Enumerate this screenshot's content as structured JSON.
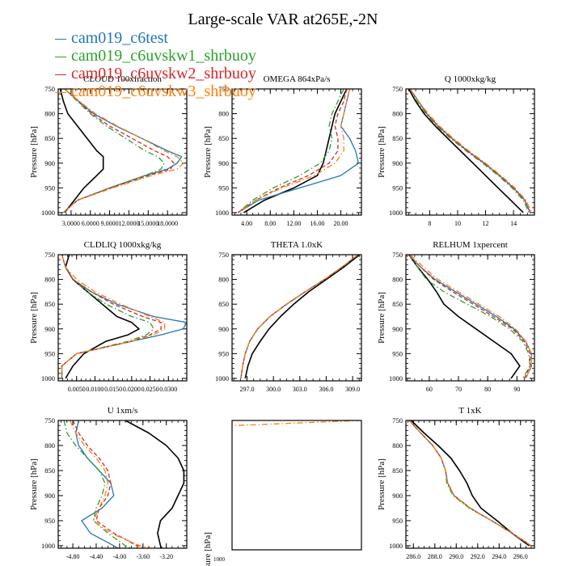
{
  "figure": {
    "title": "Large-scale VAR at265E,-2N",
    "colors": {
      "black": "#000000",
      "blue": "#1f77b4",
      "green": "#2ca02c",
      "red": "#d62728",
      "orange": "#ff7f0e"
    }
  },
  "legend": [
    {
      "name": "cam019_c6test",
      "color": "#1f77b4",
      "dash": "solid"
    },
    {
      "name": "cam019_c6uvskw1_shrbuoy",
      "color": "#2ca02c",
      "dash": "dashdot"
    },
    {
      "name": "cam019_c6uvskw2_shrbuoy",
      "color": "#d62728",
      "dash": "dash"
    },
    {
      "name": "cam019_c6uvskw3_shrbuoy",
      "color": "#ff7f0e",
      "dash": "dashdot"
    }
  ],
  "chart_data": [
    {
      "type": "line",
      "title": "CLOUD 100xfraction",
      "ylabel": "Pressure [hPa]",
      "ylim": [
        1005,
        750
      ],
      "xlim": [
        1.0,
        21.0
      ],
      "xticks": [
        3.0,
        6.0,
        9.0,
        12.0,
        15.0,
        18.0
      ],
      "xticklabels": [
        "3.0000",
        "6.0000",
        "9.0000",
        "12.0000",
        "15.0000",
        "18.0000"
      ],
      "yticks": [
        750,
        800,
        850,
        900,
        950,
        1000
      ],
      "p": [
        750,
        775,
        800,
        825,
        850,
        875,
        887,
        900,
        912,
        925,
        950,
        975,
        1000
      ],
      "series": [
        {
          "color": "black",
          "dash": "solid",
          "x": [
            1.3,
            1.8,
            2.5,
            4.0,
            5.5,
            7.0,
            8.0,
            8.0,
            8.0,
            7.0,
            5.0,
            3.5,
            2.0
          ]
        },
        {
          "color": "blue",
          "dash": "solid",
          "x": [
            2.0,
            4.2,
            6.5,
            10.0,
            14.0,
            18.0,
            20.2,
            19.5,
            18.0,
            14.5,
            9.0,
            4.0,
            1.8
          ]
        },
        {
          "color": "green",
          "dash": "dashdot",
          "x": [
            2.0,
            4.0,
            6.0,
            8.5,
            11.5,
            14.5,
            16.5,
            17.5,
            17.0,
            14.5,
            9.0,
            4.0,
            1.8
          ]
        },
        {
          "color": "red",
          "dash": "dash",
          "x": [
            2.0,
            4.1,
            6.2,
            9.0,
            12.5,
            16.0,
            18.0,
            19.0,
            18.5,
            15.0,
            9.2,
            4.0,
            1.8
          ]
        },
        {
          "color": "orange",
          "dash": "dashdot",
          "x": [
            2.0,
            4.3,
            6.8,
            10.2,
            14.0,
            17.5,
            19.5,
            20.5,
            19.5,
            15.5,
            9.5,
            4.0,
            1.8
          ]
        }
      ]
    },
    {
      "type": "line",
      "title": "OMEGA 864xPa/s",
      "ylabel": "Pressure [hPa]",
      "ylim": [
        1005,
        750
      ],
      "xlim": [
        1.5,
        23.5
      ],
      "xticks": [
        4.0,
        8.0,
        12.0,
        16.0,
        20.0
      ],
      "xticklabels": [
        "4.00",
        "8.00",
        "12.00",
        "16.00",
        "20.00"
      ],
      "yticks": [
        750,
        800,
        850,
        900,
        950,
        1000
      ],
      "p": [
        750,
        775,
        800,
        825,
        850,
        875,
        900,
        925,
        950,
        975,
        1000
      ],
      "series": [
        {
          "color": "black",
          "dash": "solid",
          "x": [
            21.0,
            20.0,
            19.0,
            18.5,
            18.0,
            17.5,
            17.0,
            16.0,
            12.0,
            7.0,
            3.5
          ]
        },
        {
          "color": "blue",
          "dash": "solid",
          "x": [
            21.5,
            21.0,
            20.5,
            20.0,
            21.5,
            22.5,
            23.0,
            20.0,
            13.0,
            6.0,
            2.5
          ]
        },
        {
          "color": "green",
          "dash": "dashdot",
          "x": [
            20.5,
            19.5,
            18.5,
            18.0,
            18.5,
            18.0,
            16.5,
            13.0,
            8.5,
            5.0,
            2.5
          ]
        },
        {
          "color": "red",
          "dash": "dash",
          "x": [
            21.0,
            20.5,
            19.5,
            19.0,
            19.5,
            19.5,
            18.0,
            14.5,
            9.5,
            5.5,
            2.5
          ]
        },
        {
          "color": "orange",
          "dash": "dashdot",
          "x": [
            21.5,
            21.0,
            20.5,
            20.0,
            20.5,
            20.5,
            19.0,
            15.5,
            10.0,
            5.5,
            2.5
          ]
        }
      ]
    },
    {
      "type": "line",
      "title": "Q 1000xkg/kg",
      "ylabel": "Pressure [hPa]",
      "ylim": [
        1005,
        750
      ],
      "xlim": [
        6.3,
        15.5
      ],
      "xticks": [
        8,
        10,
        12,
        14
      ],
      "xticklabels": [
        "8",
        "10",
        "12",
        "14"
      ],
      "yticks": [
        750,
        800,
        850,
        900,
        950,
        1000
      ],
      "p": [
        750,
        775,
        800,
        825,
        850,
        875,
        900,
        925,
        950,
        975,
        1000
      ],
      "series": [
        {
          "color": "black",
          "dash": "solid",
          "x": [
            6.5,
            7.0,
            7.6,
            8.4,
            9.3,
            10.2,
            11.1,
            12.0,
            12.9,
            13.8,
            14.7
          ]
        },
        {
          "color": "blue",
          "dash": "solid",
          "x": [
            6.6,
            7.2,
            7.8,
            8.6,
            9.6,
            10.7,
            11.9,
            13.0,
            14.0,
            14.8,
            15.2
          ]
        },
        {
          "color": "green",
          "dash": "dashdot",
          "x": [
            6.6,
            7.1,
            7.7,
            8.5,
            9.5,
            10.6,
            11.8,
            12.9,
            13.9,
            14.7,
            15.1
          ]
        },
        {
          "color": "red",
          "dash": "dash",
          "x": [
            6.6,
            7.2,
            7.8,
            8.6,
            9.6,
            10.7,
            11.9,
            13.0,
            14.0,
            14.8,
            15.2
          ]
        },
        {
          "color": "orange",
          "dash": "dashdot",
          "x": [
            6.6,
            7.2,
            7.9,
            8.7,
            9.7,
            10.8,
            12.0,
            13.1,
            14.1,
            14.9,
            15.3
          ]
        }
      ]
    },
    {
      "type": "line",
      "title": "CLDLIQ 1000xkg/kg",
      "ylabel": "Pressure [hPa]",
      "ylim": [
        1005,
        750
      ],
      "xlim": [
        0.0,
        0.035
      ],
      "xticks": [
        0.005,
        0.01,
        0.015,
        0.02,
        0.025,
        0.03
      ],
      "xticklabels": [
        "0.0050",
        "0.0100",
        "0.0150",
        "0.0200",
        "0.0250",
        "0.0300"
      ],
      "yticks": [
        750,
        800,
        850,
        900,
        950,
        1000
      ],
      "p": [
        750,
        775,
        800,
        825,
        850,
        875,
        887,
        900,
        912,
        925,
        950,
        975,
        1000
      ],
      "series": [
        {
          "color": "black",
          "dash": "solid",
          "x": [
            0.003,
            0.002,
            0.004,
            0.008,
            0.012,
            0.016,
            0.02,
            0.022,
            0.019,
            0.013,
            0.007,
            0.004,
            0.002
          ]
        },
        {
          "color": "blue",
          "dash": "solid",
          "x": [
            0.001,
            0.002,
            0.004,
            0.009,
            0.016,
            0.026,
            0.035,
            0.034,
            0.028,
            0.02,
            0.005,
            0.001,
            0.001
          ]
        },
        {
          "color": "green",
          "dash": "dashdot",
          "x": [
            0.001,
            0.002,
            0.004,
            0.008,
            0.013,
            0.02,
            0.025,
            0.026,
            0.024,
            0.019,
            0.005,
            0.001,
            0.001
          ]
        },
        {
          "color": "red",
          "dash": "dash",
          "x": [
            0.001,
            0.002,
            0.004,
            0.009,
            0.015,
            0.023,
            0.028,
            0.028,
            0.025,
            0.02,
            0.005,
            0.001,
            0.001
          ]
        },
        {
          "color": "orange",
          "dash": "dashdot",
          "x": [
            0.001,
            0.002,
            0.005,
            0.01,
            0.017,
            0.025,
            0.029,
            0.029,
            0.026,
            0.02,
            0.005,
            0.001,
            0.001
          ]
        }
      ]
    },
    {
      "type": "line",
      "title": "THETA 1.0xK",
      "ylabel": "",
      "ylim": [
        1005,
        750
      ],
      "xlim": [
        295.3,
        310.0
      ],
      "xticks": [
        297.0,
        300.0,
        303.0,
        306.0,
        309.0
      ],
      "xticklabels": [
        "297.0",
        "300.0",
        "303.0",
        "306.0",
        "309.0"
      ],
      "yticks": [
        750,
        800,
        850,
        900,
        950,
        1000
      ],
      "p": [
        750,
        775,
        800,
        825,
        850,
        875,
        900,
        925,
        950,
        975,
        1000
      ],
      "series": [
        {
          "color": "black",
          "dash": "solid",
          "x": [
            309.8,
            308.0,
            306.0,
            304.0,
            302.3,
            300.8,
            299.5,
            298.5,
            297.6,
            297.1,
            296.8
          ]
        },
        {
          "color": "blue",
          "dash": "solid",
          "x": [
            309.6,
            307.8,
            305.8,
            303.6,
            301.5,
            299.6,
            298.2,
            297.3,
            296.8,
            296.5,
            296.3
          ]
        },
        {
          "color": "green",
          "dash": "dashdot",
          "x": [
            309.6,
            307.8,
            305.8,
            303.6,
            301.5,
            299.6,
            298.2,
            297.3,
            296.8,
            296.5,
            296.3
          ]
        },
        {
          "color": "red",
          "dash": "dash",
          "x": [
            309.6,
            307.8,
            305.8,
            303.6,
            301.5,
            299.6,
            298.2,
            297.3,
            296.8,
            296.5,
            296.3
          ]
        },
        {
          "color": "orange",
          "dash": "dashdot",
          "x": [
            309.6,
            307.8,
            305.8,
            303.6,
            301.5,
            299.6,
            298.2,
            297.3,
            296.8,
            296.5,
            296.3
          ]
        }
      ]
    },
    {
      "type": "line",
      "title": "RELHUM 1xpercent",
      "ylabel": "Pressure [hPa]",
      "ylim": [
        1005,
        750
      ],
      "xlim": [
        52.0,
        96.0
      ],
      "xticks": [
        60,
        70,
        80,
        90
      ],
      "xticklabels": [
        "60",
        "70",
        "80",
        "90"
      ],
      "yticks": [
        750,
        800,
        850,
        900,
        950,
        1000
      ],
      "p": [
        750,
        775,
        800,
        825,
        850,
        875,
        900,
        925,
        950,
        975,
        1000
      ],
      "series": [
        {
          "color": "black",
          "dash": "solid",
          "x": [
            53.0,
            56.0,
            59.5,
            62.5,
            65.0,
            70.0,
            76.0,
            82.0,
            88.0,
            91.0,
            88.0
          ]
        },
        {
          "color": "blue",
          "dash": "solid",
          "x": [
            53.0,
            57.0,
            62.0,
            69.0,
            76.0,
            83.0,
            89.0,
            93.0,
            95.0,
            95.0,
            93.0
          ]
        },
        {
          "color": "green",
          "dash": "dashdot",
          "x": [
            53.0,
            56.0,
            59.0,
            65.0,
            73.0,
            81.0,
            87.5,
            92.0,
            94.0,
            94.5,
            92.0
          ]
        },
        {
          "color": "red",
          "dash": "dash",
          "x": [
            53.0,
            57.0,
            61.5,
            68.0,
            75.0,
            82.0,
            88.5,
            92.5,
            94.5,
            94.5,
            92.5
          ]
        },
        {
          "color": "orange",
          "dash": "dashdot",
          "x": [
            53.5,
            58.0,
            63.0,
            70.0,
            77.0,
            84.0,
            89.5,
            93.0,
            95.0,
            95.0,
            93.0
          ]
        }
      ]
    },
    {
      "type": "line",
      "title": "U 1xm/s",
      "ylabel": "Pressure [hPa]",
      "ylim": [
        1005,
        750
      ],
      "xlim": [
        -5.05,
        -2.85
      ],
      "xticks": [
        -4.8,
        -4.4,
        -4.0,
        -3.6,
        -3.2
      ],
      "xticklabels": [
        "-4.80",
        "-4.40",
        "-4.00",
        "-3.60",
        "-3.20"
      ],
      "yticks": [
        750,
        800,
        850,
        900,
        950,
        1000
      ],
      "p": [
        750,
        775,
        800,
        825,
        850,
        875,
        900,
        925,
        950,
        975,
        1000,
        1010
      ],
      "series": [
        {
          "color": "black",
          "dash": "solid",
          "x": [
            -3.9,
            -3.5,
            -3.2,
            -3.0,
            -2.9,
            -2.9,
            -3.0,
            -3.1,
            -3.3,
            -3.35,
            -3.3,
            -3.25
          ]
        },
        {
          "color": "blue",
          "dash": "solid",
          "x": [
            -4.7,
            -4.75,
            -4.7,
            -4.55,
            -4.35,
            -4.15,
            -4.1,
            -4.3,
            -4.65,
            -4.5,
            -4.1,
            -3.95
          ]
        },
        {
          "color": "green",
          "dash": "dashdot",
          "x": [
            -4.95,
            -4.9,
            -4.75,
            -4.55,
            -4.35,
            -4.25,
            -4.3,
            -4.4,
            -4.45,
            -4.2,
            -3.9,
            -3.7
          ]
        },
        {
          "color": "red",
          "dash": "dash",
          "x": [
            -4.8,
            -4.7,
            -4.55,
            -4.35,
            -4.2,
            -4.15,
            -4.2,
            -4.35,
            -4.4,
            -4.1,
            -3.7,
            -3.5
          ]
        },
        {
          "color": "orange",
          "dash": "dashdot",
          "x": [
            -4.85,
            -4.75,
            -4.6,
            -4.4,
            -4.25,
            -4.2,
            -4.25,
            -4.35,
            -4.45,
            -4.15,
            -3.65,
            -3.3
          ]
        }
      ]
    },
    {
      "type": "line",
      "title": "",
      "ylabel": "Pressure [hPa]",
      "ytick_visible": "1000",
      "ylim": [
        1000,
        0
      ],
      "xlim": [
        0,
        1
      ],
      "xticks": [],
      "xticklabels": [],
      "yticks": [],
      "p": [
        0,
        40
      ],
      "series": [
        {
          "color": "orange",
          "dash": "dashdot",
          "x": [
            1.0,
            0.0
          ]
        }
      ]
    },
    {
      "type": "line",
      "title": "T 1xK",
      "ylabel": "Pressure [hPa]",
      "ylim": [
        1005,
        750
      ],
      "xlim": [
        285.3,
        297.3
      ],
      "xticks": [
        286.0,
        288.0,
        290.0,
        292.0,
        294.0,
        296.0
      ],
      "xticklabels": [
        "286.0",
        "288.0",
        "290.0",
        "292.0",
        "294.0",
        "296.0"
      ],
      "yticks": [
        750,
        800,
        850,
        900,
        950,
        1000
      ],
      "p": [
        750,
        775,
        800,
        825,
        850,
        875,
        900,
        925,
        950,
        975,
        1000
      ],
      "series": [
        {
          "color": "black",
          "dash": "solid",
          "x": [
            285.8,
            287.0,
            288.3,
            289.5,
            290.3,
            291.0,
            291.5,
            292.3,
            293.8,
            295.2,
            296.8
          ]
        },
        {
          "color": "blue",
          "dash": "solid",
          "x": [
            285.6,
            286.7,
            287.8,
            288.6,
            289.0,
            289.2,
            289.8,
            291.3,
            293.3,
            295.2,
            297.0
          ]
        },
        {
          "color": "green",
          "dash": "dashdot",
          "x": [
            285.6,
            286.7,
            287.8,
            288.6,
            289.0,
            289.1,
            289.7,
            291.2,
            293.3,
            295.2,
            297.0
          ]
        },
        {
          "color": "red",
          "dash": "dash",
          "x": [
            285.6,
            286.7,
            287.8,
            288.6,
            289.0,
            289.2,
            289.8,
            291.3,
            293.3,
            295.2,
            297.0
          ]
        },
        {
          "color": "orange",
          "dash": "dashdot",
          "x": [
            285.6,
            286.7,
            287.8,
            288.6,
            289.0,
            289.2,
            289.8,
            291.3,
            293.3,
            295.2,
            297.0
          ]
        }
      ]
    }
  ]
}
